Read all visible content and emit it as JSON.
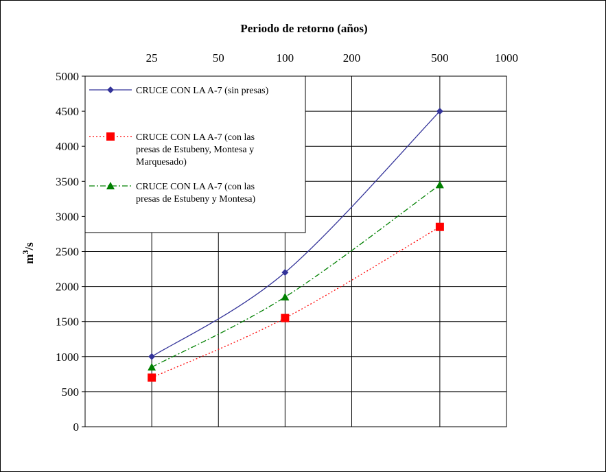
{
  "chart_data": {
    "type": "line",
    "title": "Periodo de retorno (años)",
    "ylabel": "m³/s",
    "x_axis": {
      "scale": "log",
      "position": "top",
      "ticks": [
        25,
        50,
        100,
        200,
        500,
        1000
      ],
      "tick_labels": [
        "25",
        "50",
        "100",
        "200",
        "500",
        "1000"
      ],
      "range": [
        12.5,
        1000
      ]
    },
    "y_axis": {
      "ticks": [
        0,
        500,
        1000,
        1500,
        2000,
        2500,
        3000,
        3500,
        4000,
        4500,
        5000
      ],
      "tick_labels": [
        "0",
        "500",
        "1000",
        "1500",
        "2000",
        "2500",
        "3000",
        "3500",
        "4000",
        "4500",
        "5000"
      ],
      "range": [
        0,
        5000
      ]
    },
    "grid": true,
    "legend_position": "top-left",
    "series": [
      {
        "name": "CRUCE CON LA A-7 (sin presas)",
        "name_lines": [
          "CRUCE CON LA A-7 (sin presas)"
        ],
        "color": "#333399",
        "line_style": "solid",
        "marker": "diamond",
        "x": [
          25,
          100,
          500
        ],
        "y": [
          1000,
          2200,
          4500
        ]
      },
      {
        "name": "CRUCE CON LA A-7 (con las presas de Estubeny, Montesa y Marquesado)",
        "name_lines": [
          "CRUCE CON LA A-7 (con las",
          "presas de Estubeny, Montesa y",
          "Marquesado)"
        ],
        "color": "#ff0000",
        "line_style": "dotted",
        "marker": "square",
        "x": [
          25,
          100,
          500
        ],
        "y": [
          700,
          1550,
          2850
        ]
      },
      {
        "name": "CRUCE CON LA A-7 (con las presas de Estubeny y Montesa)",
        "name_lines": [
          "CRUCE CON LA A-7 (con las",
          "presas de Estubeny y Montesa)"
        ],
        "color": "#008000",
        "line_style": "dashdot",
        "marker": "triangle",
        "x": [
          25,
          100,
          500
        ],
        "y": [
          850,
          1850,
          3450
        ]
      }
    ]
  }
}
